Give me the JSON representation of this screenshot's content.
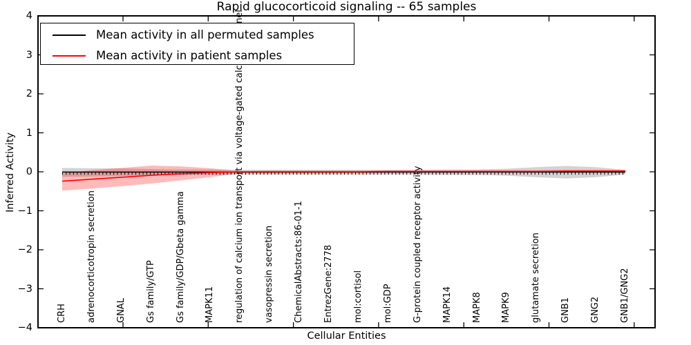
{
  "title": "Rapid glucocorticoid signaling -- 65 samples",
  "legend": {
    "items": [
      {
        "label": "Mean activity in all permuted samples",
        "color": "#000000"
      },
      {
        "label": "Mean activity in patient samples",
        "color": "#ff0000"
      }
    ]
  },
  "axes": {
    "x": {
      "label": "Cellular Entities"
    },
    "y": {
      "label": "Inferred Activity",
      "tick_values": [
        4,
        3,
        2,
        1,
        0,
        -1,
        -2,
        -3,
        -4
      ],
      "tick_labels": [
        "4",
        "3",
        "2",
        "1",
        "0",
        "−1",
        "−2",
        "−3",
        "−4"
      ],
      "min": -4,
      "max": 4
    }
  },
  "colors": {
    "permuted_line": "#000000",
    "patient_line": "#ff0000",
    "permuted_band": "rgba(130,130,130,0.35)",
    "patient_band": "rgba(255,0,0,0.27)"
  },
  "chart_data": {
    "type": "line",
    "title": "Rapid glucocorticoid signaling -- 65 samples",
    "xlabel": "Cellular Entities",
    "ylabel": "Inferred Activity",
    "ylim": [
      -4,
      4
    ],
    "grid": false,
    "legend_position": "upper left",
    "categories": [
      "CRH",
      "adrenocorticotropin secretion",
      "GNAL",
      "Gs family/GTP",
      "Gs family/GDP/Gbeta gamma",
      "MAPK11",
      "regulation of calcium ion transport via voltage-gated calcium channel",
      "vasopressin secretion",
      "ChemicalAbstracts:86-01-1",
      "EntrezGene:2778",
      "mol:cortisol",
      "mol:GDP",
      "G-protein coupled receptor activity",
      "MAPK14",
      "MAPK8",
      "MAPK9",
      "glutamate secretion",
      "GNB1",
      "GNG2",
      "GNB1/GNG2"
    ],
    "series": [
      {
        "name": "Mean activity in all permuted samples",
        "color": "#000000",
        "style": "solid line with small tick markers at each sample",
        "values": [
          0,
          0,
          0,
          0,
          0,
          0,
          0,
          0,
          0,
          0,
          0,
          0,
          0,
          0,
          0,
          0,
          0,
          0,
          0,
          0
        ],
        "band_upper": [
          0.1,
          0.09,
          0.09,
          0.07,
          0.06,
          0.06,
          0.05,
          0.05,
          0.05,
          0.05,
          0.05,
          0.05,
          0.05,
          0.06,
          0.06,
          0.08,
          0.12,
          0.15,
          0.12,
          0.05
        ],
        "band_lower": [
          -0.13,
          -0.12,
          -0.11,
          -0.09,
          -0.08,
          -0.08,
          -0.07,
          -0.07,
          -0.07,
          -0.07,
          -0.07,
          -0.07,
          -0.07,
          -0.08,
          -0.08,
          -0.1,
          -0.14,
          -0.17,
          -0.14,
          -0.07
        ]
      },
      {
        "name": "Mean activity in patient samples",
        "color": "#ff0000",
        "style": "solid",
        "values": [
          -0.24,
          -0.19,
          -0.14,
          -0.09,
          -0.05,
          -0.02,
          0,
          0,
          0,
          0,
          0,
          0.01,
          0.01,
          0.01,
          0.01,
          0.01,
          0.01,
          0.02,
          0.02,
          0.02
        ],
        "band_upper": [
          -0.04,
          0.04,
          0.1,
          0.16,
          0.14,
          0.09,
          0.02,
          0.03,
          0.03,
          0.03,
          0.03,
          0.03,
          0.03,
          0.03,
          0.04,
          0.04,
          0.04,
          0.05,
          0.05,
          0.05
        ],
        "band_lower": [
          -0.48,
          -0.43,
          -0.37,
          -0.3,
          -0.22,
          -0.14,
          -0.03,
          -0.04,
          -0.03,
          -0.03,
          -0.03,
          -0.02,
          -0.02,
          -0.02,
          -0.02,
          -0.02,
          -0.02,
          -0.02,
          -0.02,
          -0.02
        ]
      }
    ]
  }
}
